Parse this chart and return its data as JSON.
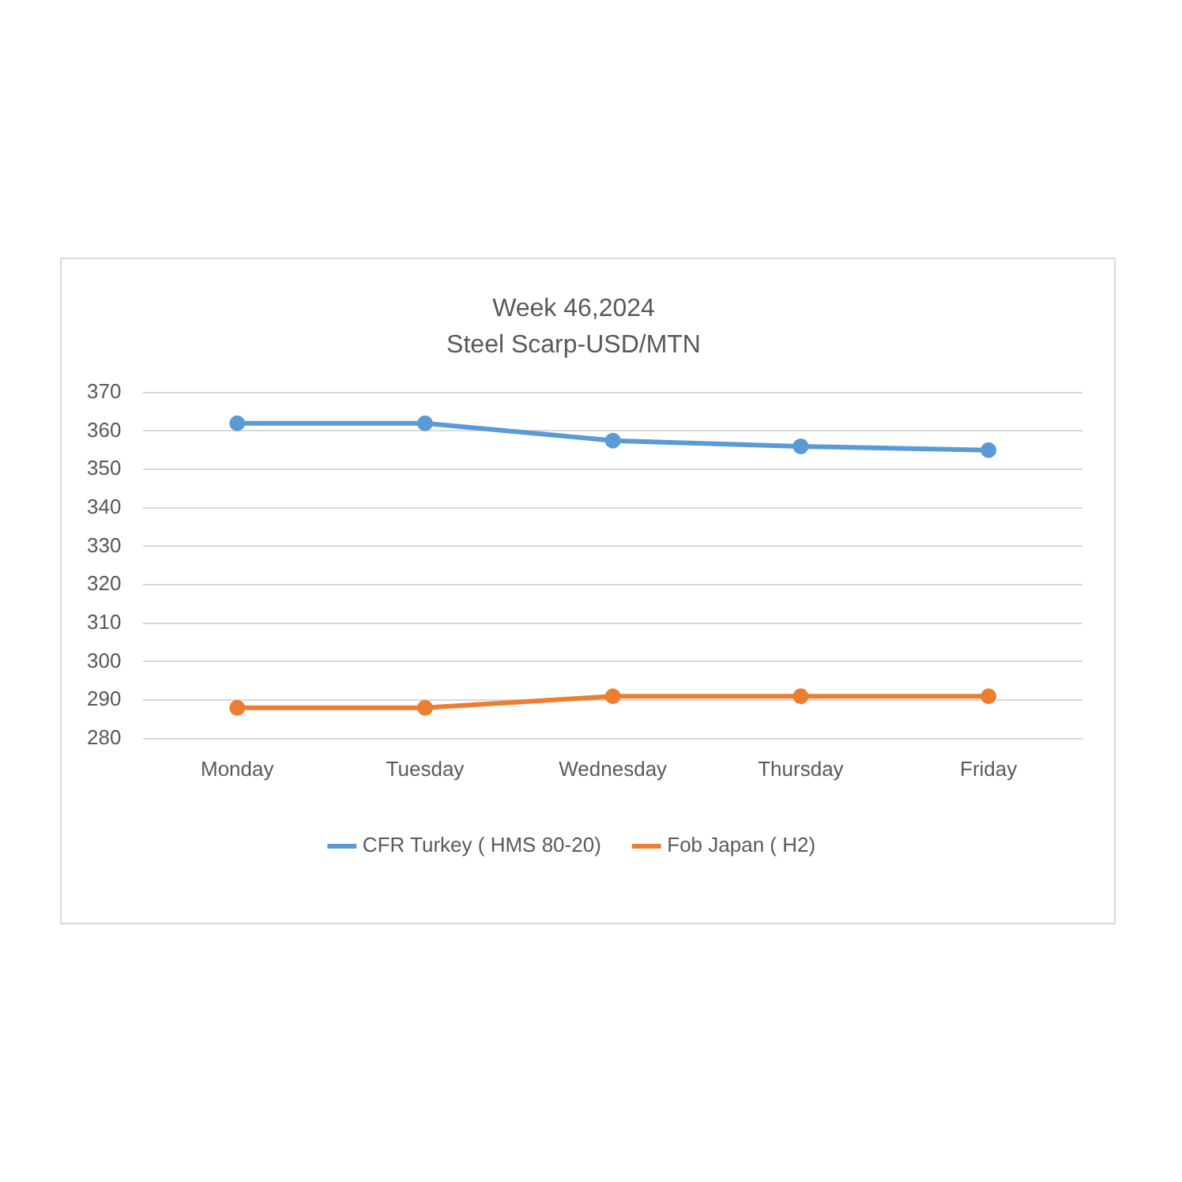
{
  "chart_data": {
    "type": "line",
    "title": "Week 46,2024",
    "subtitle": "Steel Scarp-USD/MTN",
    "categories": [
      "Monday",
      "Tuesday",
      "Wednesday",
      "Thursday",
      "Friday"
    ],
    "series": [
      {
        "name": "CFR Turkey ( HMS 80-20)",
        "color": "#5b9bd5",
        "values": [
          362,
          362,
          357.5,
          356,
          355
        ]
      },
      {
        "name": "Fob Japan ( H2)",
        "color": "#ed7d31",
        "values": [
          288,
          288,
          291,
          291,
          291
        ]
      }
    ],
    "ylim": [
      280,
      370
    ],
    "yticks": [
      280,
      290,
      300,
      310,
      320,
      330,
      340,
      350,
      360,
      370
    ],
    "grid": "y",
    "legend": "bottom",
    "marker": "circle",
    "line_style": "solid"
  }
}
